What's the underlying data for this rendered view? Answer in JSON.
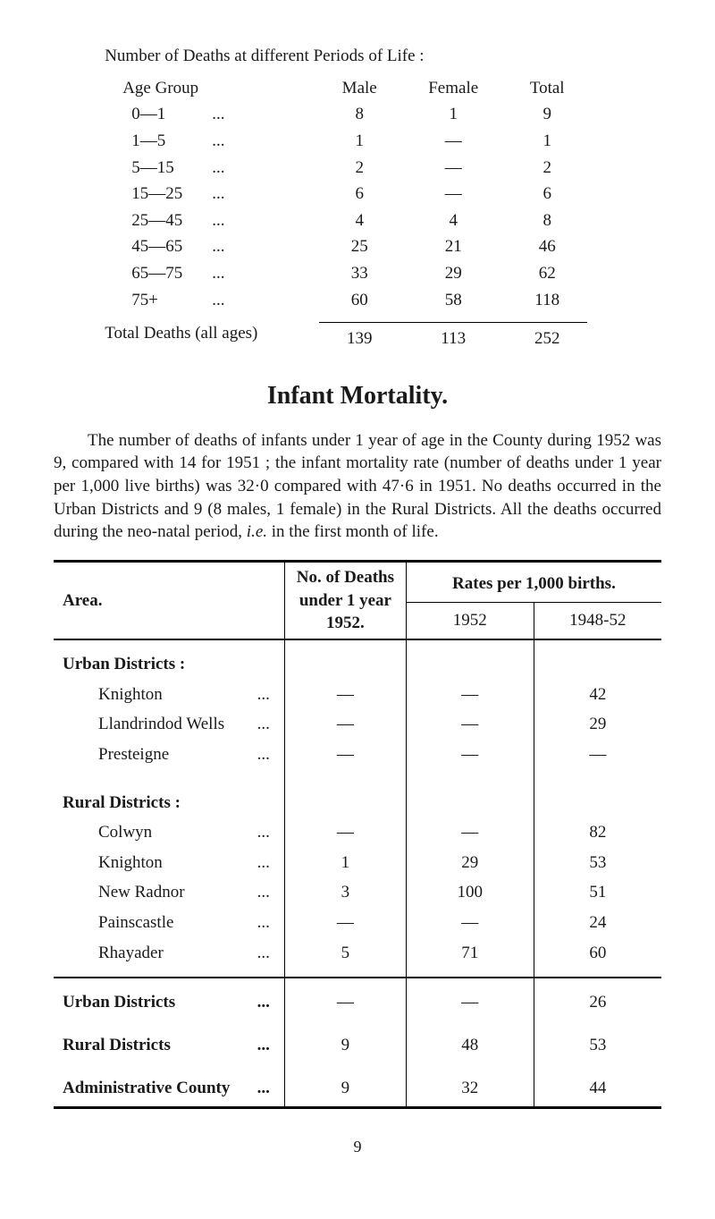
{
  "deaths_by_age": {
    "title": "Number of Deaths at different Periods of Life :",
    "headers": {
      "age": "Age Group",
      "male": "Male",
      "female": "Female",
      "total": "Total"
    },
    "rows": [
      {
        "age": "0—1",
        "male": "8",
        "female": "1",
        "total": "9"
      },
      {
        "age": "1—5",
        "male": "1",
        "female": "—",
        "total": "1"
      },
      {
        "age": "5—15",
        "male": "2",
        "female": "—",
        "total": "2"
      },
      {
        "age": "15—25",
        "male": "6",
        "female": "—",
        "total": "6"
      },
      {
        "age": "25—45",
        "male": "4",
        "female": "4",
        "total": "8"
      },
      {
        "age": "45—65",
        "male": "25",
        "female": "21",
        "total": "46"
      },
      {
        "age": "65—75",
        "male": "33",
        "female": "29",
        "total": "62"
      },
      {
        "age": "75+",
        "male": "60",
        "female": "58",
        "total": "118"
      }
    ],
    "total_row": {
      "label": "Total Deaths (all ages)",
      "male": "139",
      "female": "113",
      "total": "252"
    }
  },
  "infant_title": "Infant Mortality.",
  "paragraph_parts": {
    "p1": "The number of deaths of infants under 1 year of age in the County during 1952 was 9, compared with 14 for 1951 ; the infant mortality rate (number of deaths under 1 year per 1,000 live births) was 32·0 compared with 47·6 in 1951. No deaths occurred in the Urban Districts and 9 (8 males, 1 female) in the Rural Districts.  All the deaths occurred during the neo-natal period, ",
    "p2": "i.e.",
    "p3": " in the first month of life."
  },
  "main_table": {
    "headers": {
      "area": "Area.",
      "deaths": "No. of Deaths under 1 year 1952.",
      "rates_span": "Rates per 1,000 births.",
      "rate_1952": "1952",
      "rate_1948_52": "1948-52"
    },
    "urban_section": "Urban Districts :",
    "urban_rows": [
      {
        "name": "Knighton",
        "deaths": "—",
        "r1952": "—",
        "r4852": "42"
      },
      {
        "name": "Llandrindod Wells",
        "deaths": "—",
        "r1952": "—",
        "r4852": "29"
      },
      {
        "name": "Presteigne",
        "deaths": "—",
        "r1952": "—",
        "r4852": "—"
      }
    ],
    "rural_section": "Rural Districts :",
    "rural_rows": [
      {
        "name": "Colwyn",
        "deaths": "—",
        "r1952": "—",
        "r4852": "82"
      },
      {
        "name": "Knighton",
        "deaths": "1",
        "r1952": "29",
        "r4852": "53"
      },
      {
        "name": "New Radnor",
        "deaths": "3",
        "r1952": "100",
        "r4852": "51"
      },
      {
        "name": "Painscastle",
        "deaths": "—",
        "r1952": "—",
        "r4852": "24"
      },
      {
        "name": "Rhayader",
        "deaths": "5",
        "r1952": "71",
        "r4852": "60"
      }
    ],
    "summary_rows": [
      {
        "name": "Urban Districts",
        "deaths": "—",
        "r1952": "—",
        "r4852": "26",
        "bold": true
      },
      {
        "name": "Rural Districts",
        "deaths": "9",
        "r1952": "48",
        "r4852": "53",
        "bold": true
      },
      {
        "name": "Administrative County",
        "deaths": "9",
        "r1952": "32",
        "r4852": "44",
        "bold": true
      }
    ]
  },
  "page_number": "9",
  "dots": "..."
}
